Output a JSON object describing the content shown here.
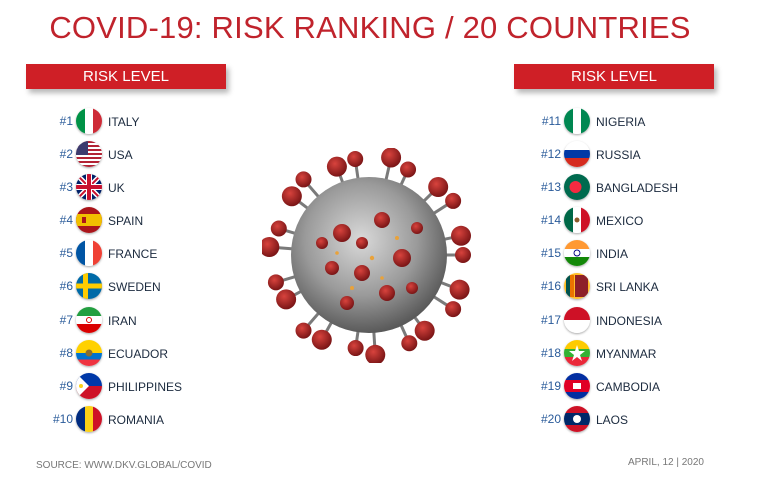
{
  "title": "COVID-19: RISK RANKING / 20 COUNTRIES",
  "left_header": "RISK LEVEL",
  "right_header": "RISK LEVEL",
  "left_list": [
    {
      "rank": "#1",
      "name": "ITALY",
      "flag": "italy-flag-icon"
    },
    {
      "rank": "#2",
      "name": "USA",
      "flag": "usa-flag-icon"
    },
    {
      "rank": "#3",
      "name": "UK",
      "flag": "uk-flag-icon"
    },
    {
      "rank": "#4",
      "name": "SPAIN",
      "flag": "spain-flag-icon"
    },
    {
      "rank": "#5",
      "name": "FRANCE",
      "flag": "france-flag-icon"
    },
    {
      "rank": "#6",
      "name": "SWEDEN",
      "flag": "sweden-flag-icon"
    },
    {
      "rank": "#7",
      "name": "IRAN",
      "flag": "iran-flag-icon"
    },
    {
      "rank": "#8",
      "name": "ECUADOR",
      "flag": "ecuador-flag-icon"
    },
    {
      "rank": "#9",
      "name": "PHILIPPINES",
      "flag": "philippines-flag-icon"
    },
    {
      "rank": "#10",
      "name": "ROMANIA",
      "flag": "romania-flag-icon"
    }
  ],
  "right_list": [
    {
      "rank": "#11",
      "name": "NIGERIA",
      "flag": "nigeria-flag-icon"
    },
    {
      "rank": "#12",
      "name": "RUSSIA",
      "flag": "russia-flag-icon"
    },
    {
      "rank": "#13",
      "name": "BANGLADESH",
      "flag": "bangladesh-flag-icon"
    },
    {
      "rank": "#14",
      "name": "MEXICO",
      "flag": "mexico-flag-icon"
    },
    {
      "rank": "#15",
      "name": "INDIA",
      "flag": "india-flag-icon"
    },
    {
      "rank": "#16",
      "name": "SRI LANKA",
      "flag": "sri-lanka-flag-icon"
    },
    {
      "rank": "#17",
      "name": "INDONESIA",
      "flag": "indonesia-flag-icon"
    },
    {
      "rank": "#18",
      "name": "MYANMAR",
      "flag": "myanmar-flag-icon"
    },
    {
      "rank": "#19",
      "name": "CAMBODIA",
      "flag": "cambodia-flag-icon"
    },
    {
      "rank": "#20",
      "name": "LAOS",
      "flag": "laos-flag-icon"
    }
  ],
  "footer": {
    "source": "SOURCE: WWW.DKV.GLOBAL/COVID",
    "date": "APRIL, 12 | 2020"
  },
  "colors": {
    "accent": "#c0232c",
    "header_bg": "#cf1f26",
    "rank_text": "#2a5b9a"
  }
}
